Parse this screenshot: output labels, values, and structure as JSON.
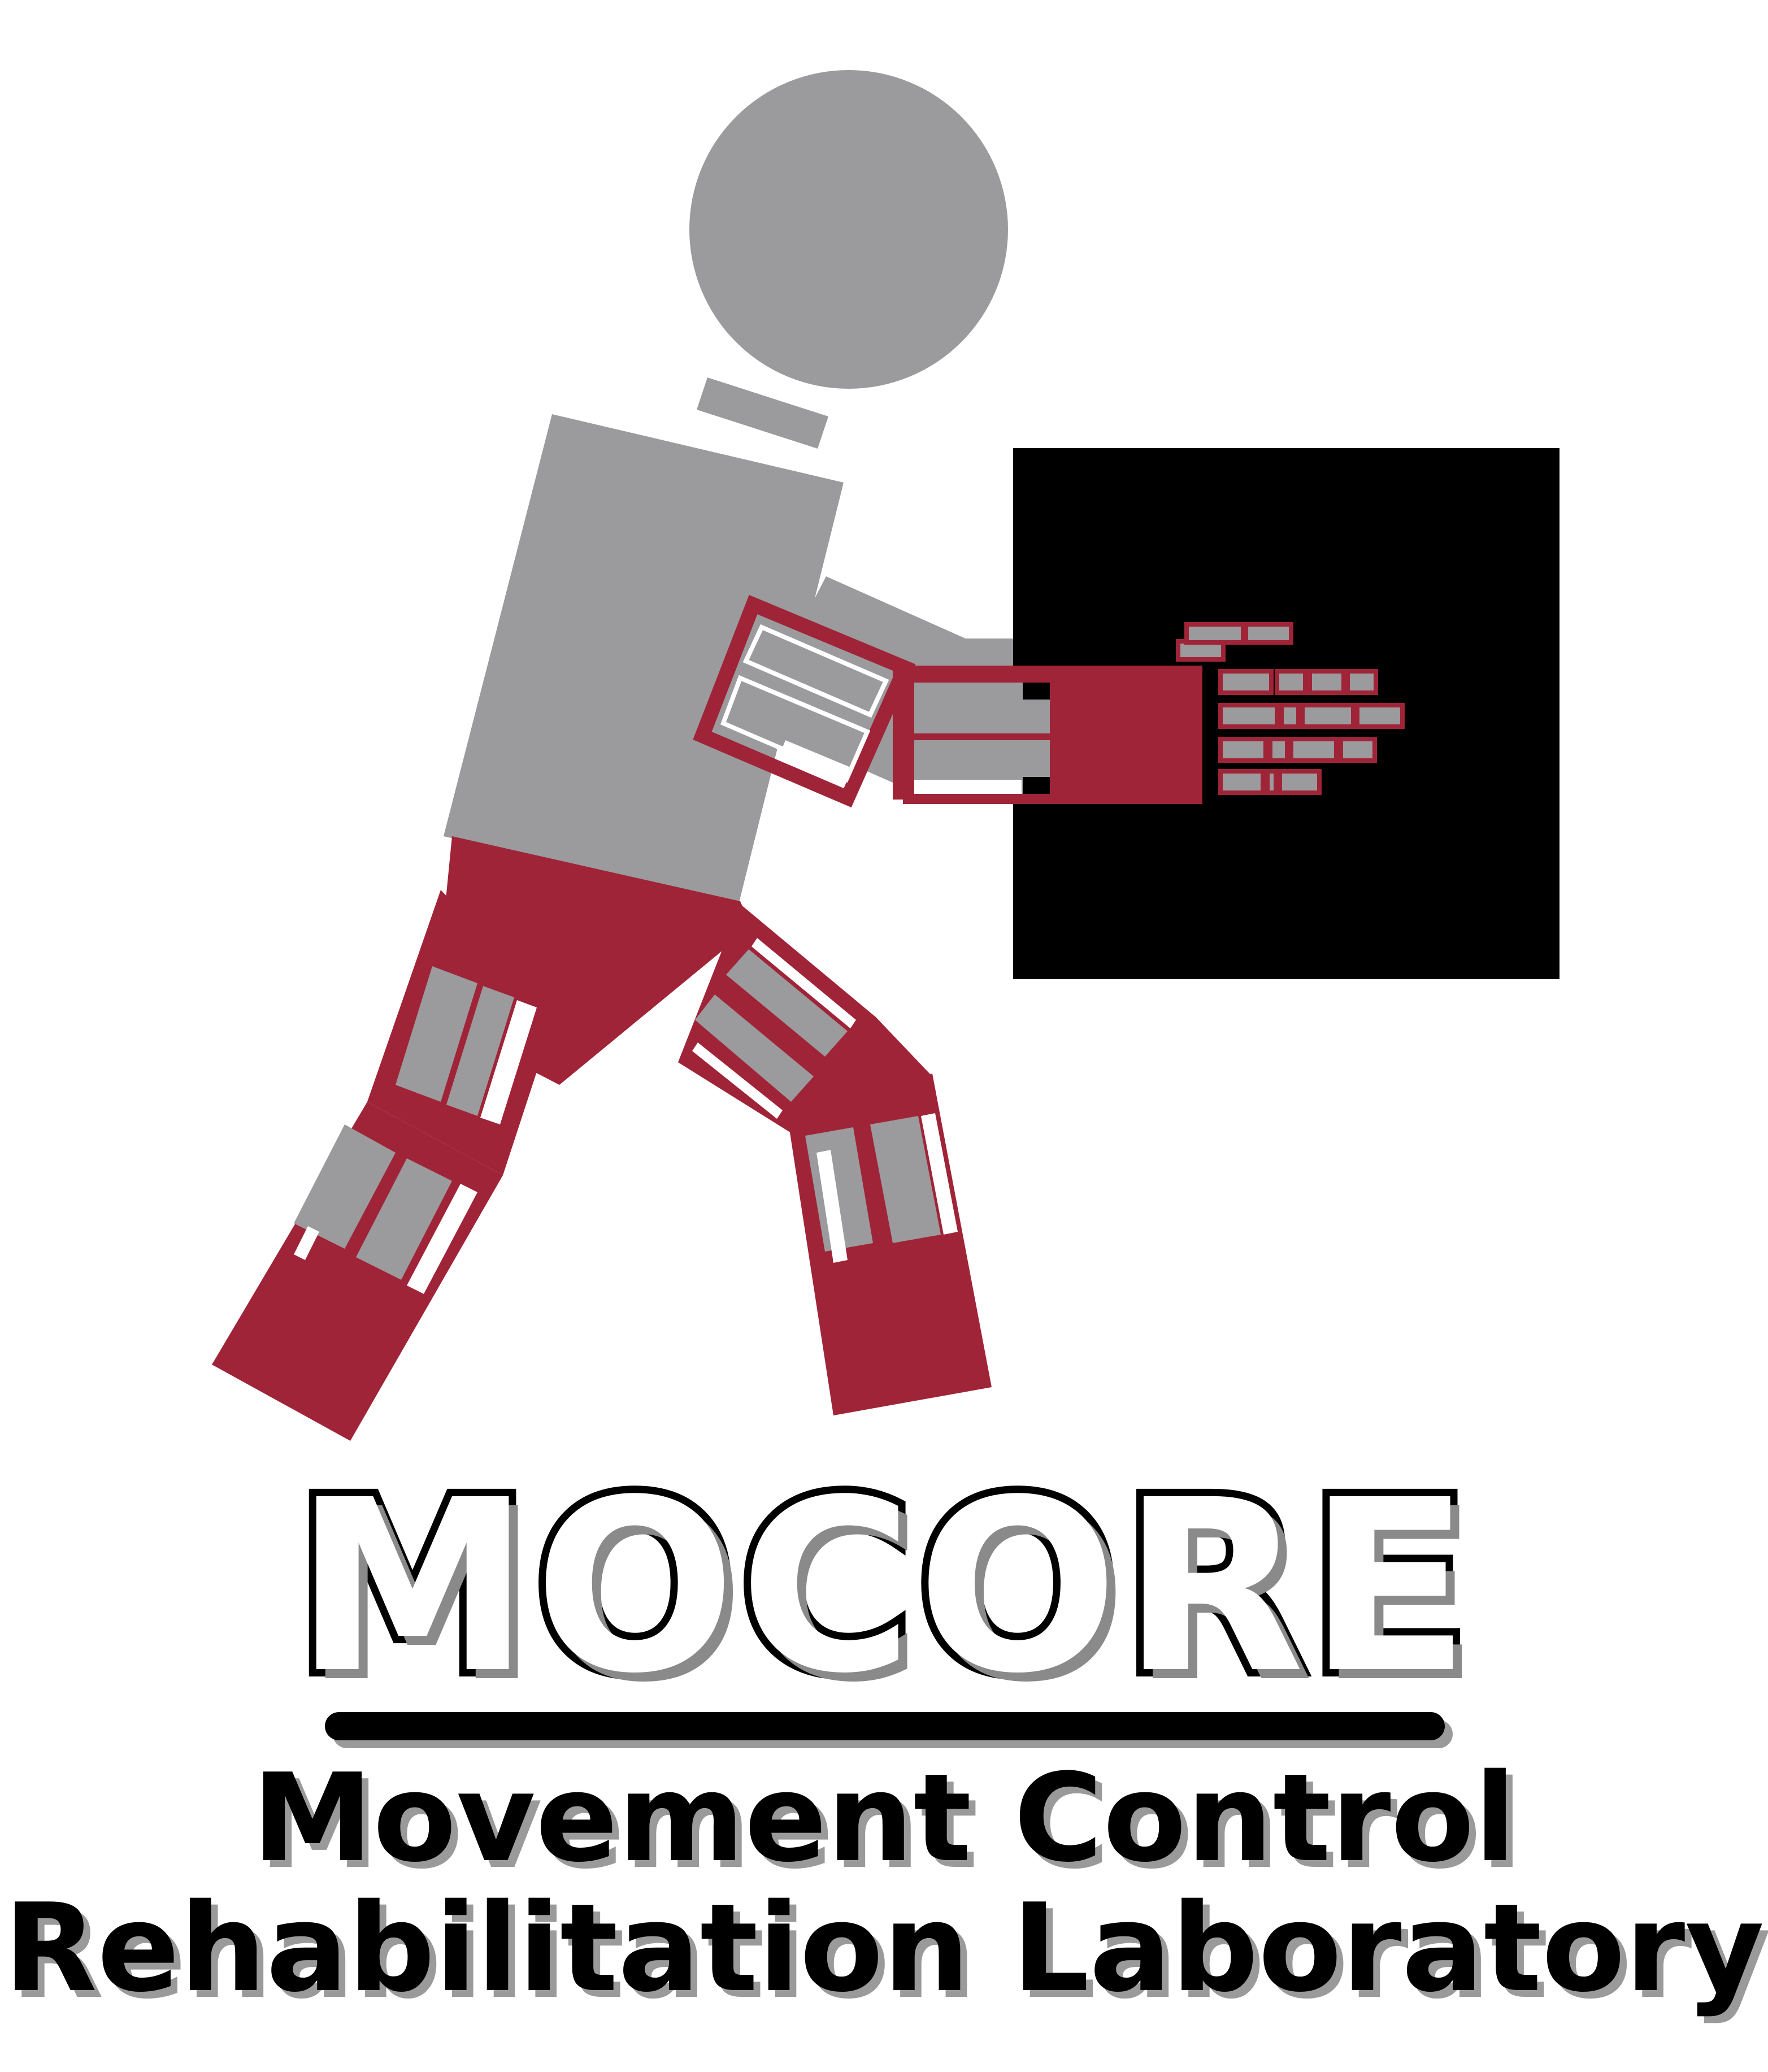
{
  "logo": {
    "title": "MOCORE",
    "subtitle_line1": "Movement Control",
    "subtitle_line2": "Rehabilitation Laboratory"
  },
  "colors": {
    "body_gray": "#9b9a9d",
    "exo_maroon": "#a02438",
    "box_black": "#000000",
    "background": "#ffffff"
  }
}
